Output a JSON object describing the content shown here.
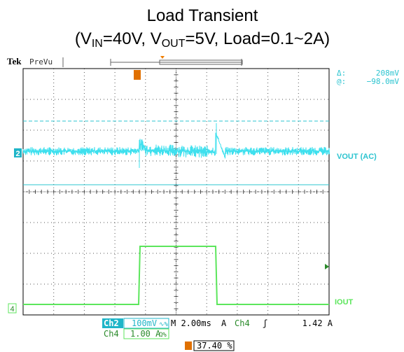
{
  "header": {
    "title": "Load Transient",
    "subtitle": [
      "(V",
      "IN",
      "=40V, V",
      "OUT",
      "=5V, Load=0.1~2A)"
    ]
  },
  "scope": {
    "brand": "Tek",
    "mode": "PreVu",
    "readout": {
      "delta_label": "Δ:",
      "delta_value": "208mV",
      "at_label": "@:",
      "at_value": "−98.0mV"
    },
    "channels": {
      "ch2_marker": "2",
      "ch4_marker": "4",
      "ch2_name": "VOUT (AC)",
      "ch4_name": "IOUT"
    },
    "status": {
      "ch2": "Ch2",
      "ch2_scale": "100mV",
      "ch2_sym": "∿%",
      "timebase": "M 2.00ms",
      "trig_mode": "A",
      "trig_ch": "Ch4",
      "trig_slope": "ʃ",
      "trig_level": "1.42 A",
      "ch4": "Ch4",
      "ch4_scale": "1.00 A",
      "ch4_sym": "Ω%",
      "position": "37.40 %"
    }
  }
}
